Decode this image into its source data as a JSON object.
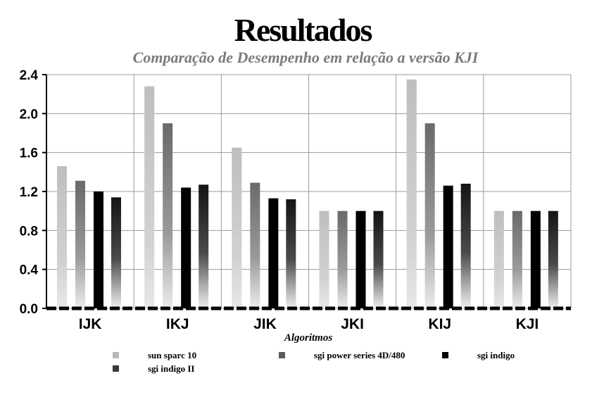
{
  "chart_data": {
    "type": "bar",
    "title": "Resultados",
    "subtitle": "Comparação de Desempenho em relação a versão KJI",
    "xlabel": "Algoritmos",
    "ylabel": "",
    "categories": [
      "IJK",
      "IKJ",
      "JIK",
      "JKI",
      "KIJ",
      "KJI"
    ],
    "ylim": [
      0,
      2.4
    ],
    "yticks": [
      "0.0",
      "0.4",
      "0.8",
      "1.2",
      "1.6",
      "2.0",
      "2.4"
    ],
    "grid": true,
    "legend_position": "bottom",
    "series": [
      {
        "name": "sun sparc 10",
        "values": [
          1.46,
          2.28,
          1.65,
          1.0,
          2.35,
          1.0
        ],
        "color": "#c0c0c0"
      },
      {
        "name": "sgi power series 4D/480",
        "values": [
          1.31,
          1.9,
          1.29,
          1.0,
          1.9,
          1.0
        ],
        "color": "#6e6e6e"
      },
      {
        "name": "sgi indigo",
        "values": [
          1.2,
          1.24,
          1.13,
          1.0,
          1.26,
          1.0
        ],
        "color": "#000000"
      },
      {
        "name": "sgi indigo II",
        "values": [
          1.14,
          1.27,
          1.12,
          1.0,
          1.28,
          1.0
        ],
        "color": "#2a2a2a"
      }
    ]
  }
}
